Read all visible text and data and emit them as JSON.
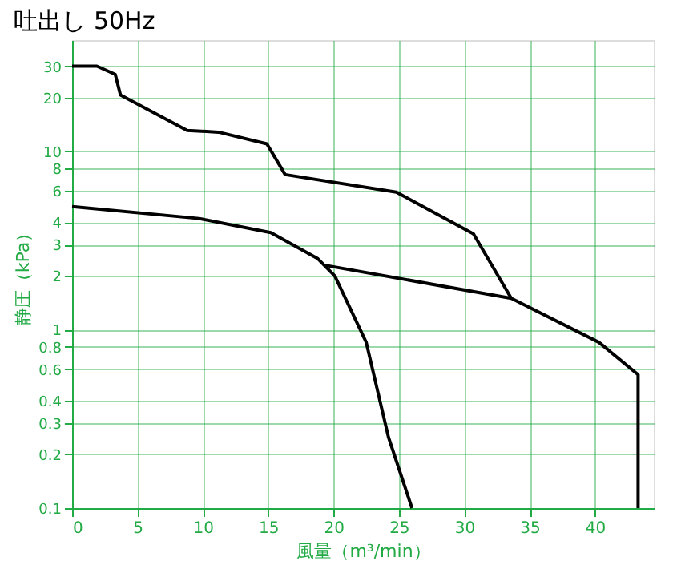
{
  "chart_data": {
    "type": "line",
    "title": "吐出し 50Hz",
    "xlabel": "風量（m³/min）",
    "ylabel": "静圧（kPa）",
    "xlim": [
      0,
      44.5
    ],
    "xticks": [
      0,
      5,
      10,
      15,
      20,
      25,
      30,
      35,
      40
    ],
    "ylim": [
      0.1,
      42
    ],
    "yticks": [
      0.1,
      0.2,
      0.3,
      0.4,
      0.6,
      0.8,
      1,
      2,
      3,
      4,
      6,
      8,
      10,
      20,
      30
    ],
    "log": "y",
    "grid": true,
    "legend": false,
    "marker": "none",
    "line_style": "solid",
    "series": [
      {
        "color": "#000000",
        "x": [
          0,
          1.9,
          3.3,
          3.7,
          8.8,
          11.2,
          14.9,
          16.3,
          24.8,
          30.7,
          33.6
        ],
        "values": [
          30,
          30,
          27,
          20.7,
          13.1,
          12.8,
          11,
          7.4,
          5.9,
          3.45,
          1.5
        ]
      },
      {
        "color": "#000000",
        "x": [
          0,
          9.7,
          15.2,
          18.8,
          20.1,
          22.5,
          24.2,
          26
        ],
        "values": [
          4.9,
          4.2,
          3.5,
          2.5,
          2.0,
          0.85,
          0.25,
          0.1
        ]
      },
      {
        "color": "#000000",
        "x": [
          19.3,
          33.6,
          40.3,
          43.3,
          43.3
        ],
        "values": [
          2.3,
          1.5,
          0.85,
          0.56,
          0.1
        ]
      }
    ]
  }
}
